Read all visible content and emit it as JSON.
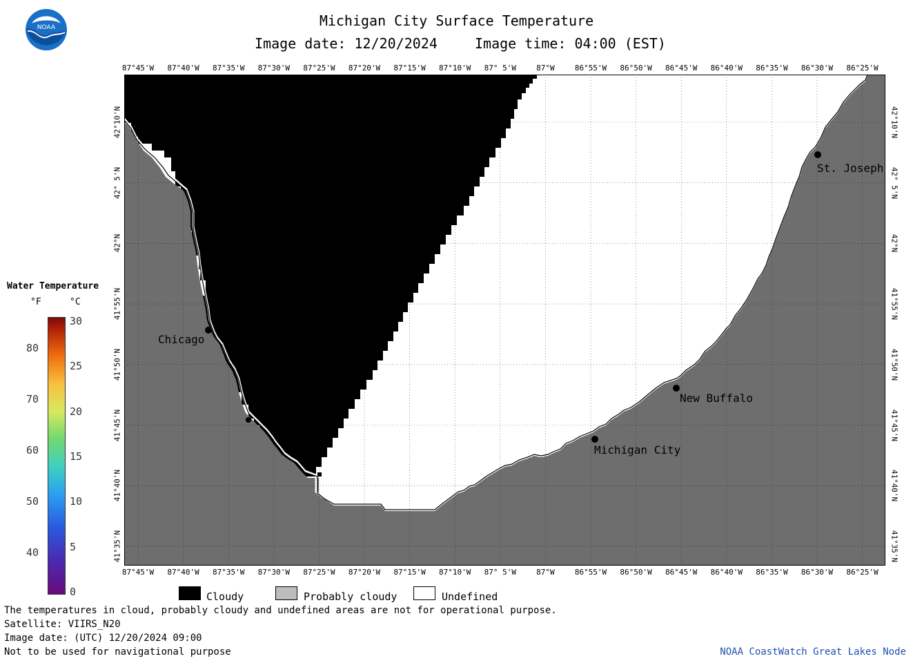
{
  "header": {
    "title": "Michigan City Surface Temperature",
    "image_date": "Image date: 12/20/2024",
    "image_time": "Image time: 04:00 (EST)"
  },
  "logo": {
    "text": "NOAA"
  },
  "axes": {
    "longitude_ticks": [
      "87°45'W",
      "87°40'W",
      "87°35'W",
      "87°30'W",
      "87°25'W",
      "87°20'W",
      "87°15'W",
      "87°10'W",
      "87° 5'W",
      "87°W",
      "86°55'W",
      "86°50'W",
      "86°45'W",
      "86°40'W",
      "86°35'W",
      "86°30'W",
      "86°25'W"
    ],
    "latitude_ticks": [
      "42°10'N",
      "42° 5'N",
      "42°N",
      "41°55'N",
      "41°50'N",
      "41°45'N",
      "41°40'N",
      "41°35'N"
    ]
  },
  "colorbar": {
    "title": "Water Temperature",
    "unit_f": "°F",
    "unit_c": "°C",
    "f_labels": [
      "80",
      "70",
      "60",
      "50",
      "40"
    ],
    "c_labels": [
      "30",
      "25",
      "20",
      "15",
      "10",
      "5",
      "0"
    ]
  },
  "cities": [
    {
      "name": "Chicago"
    },
    {
      "name": "Michigan City"
    },
    {
      "name": "New Buffalo"
    },
    {
      "name": "St. Joseph"
    }
  ],
  "legend": {
    "cloudy": "Cloudy",
    "probably_cloudy": "Probably cloudy",
    "undefined": "Undefined"
  },
  "footer": {
    "line1": "The temperatures in cloud, probably cloudy and undefined areas are not for operational purpose.",
    "line2": "Satellite: VIIRS_N20",
    "line3": "Image date: (UTC) 12/20/2024  09:00",
    "line4": "Not to be used for navigational purpose",
    "credit": "NOAA CoastWatch Great Lakes Node"
  },
  "colors": {
    "land": "#6e6e6e",
    "cloudy": "#000000",
    "probably_cloudy": "#bdbdbd",
    "undefined": "#ffffff",
    "noaa_blue": "#1a6fc6"
  }
}
